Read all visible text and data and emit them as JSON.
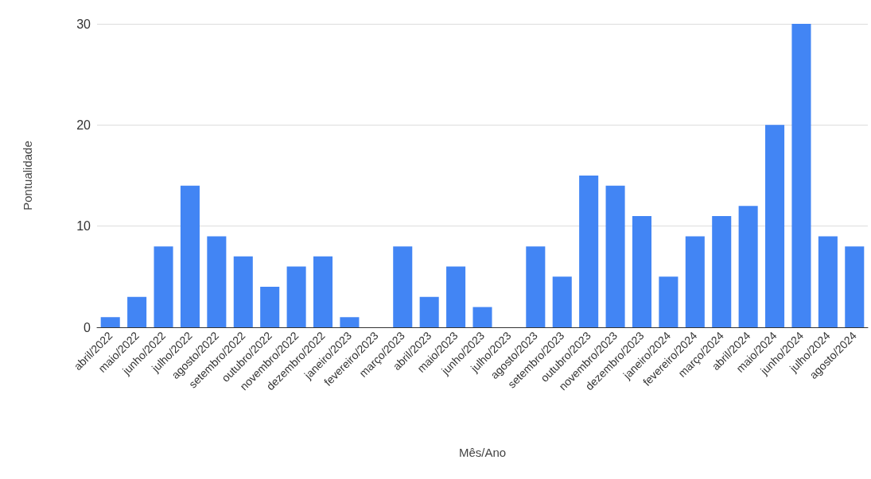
{
  "chart_data": {
    "type": "bar",
    "xlabel": "Mês/Ano",
    "ylabel": "Pontualidade",
    "categories": [
      "abril/2022",
      "maio/2022",
      "junho/2022",
      "julho/2022",
      "agosto/2022",
      "setembro/2022",
      "outubro/2022",
      "novembro/2022",
      "dezembro/2022",
      "janeiro/2023",
      "fevereiro/2023",
      "março/2023",
      "abril/2023",
      "maio/2023",
      "junho/2023",
      "julho/2023",
      "agosto/2023",
      "setembro/2023",
      "outubro/2023",
      "novembro/2023",
      "dezembro/2023",
      "janeiro/2024",
      "fevereiro/2024",
      "março/2024",
      "abril/2024",
      "maio/2024",
      "junho/2024",
      "julho/2024",
      "agosto/2024"
    ],
    "values": [
      1,
      3,
      8,
      14,
      9,
      7,
      4,
      6,
      7,
      1,
      0,
      8,
      3,
      6,
      2,
      0,
      8,
      5,
      15,
      14,
      11,
      5,
      9,
      11,
      12,
      20,
      30,
      9,
      8
    ],
    "color": "#4285f4",
    "ylim": [
      0,
      30
    ],
    "yticks": [
      0,
      10,
      20,
      30
    ],
    "grid": "y"
  }
}
